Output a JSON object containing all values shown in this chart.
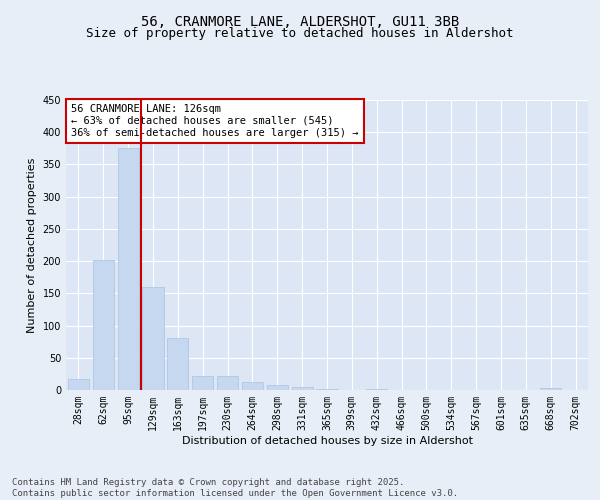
{
  "title": "56, CRANMORE LANE, ALDERSHOT, GU11 3BB",
  "subtitle": "Size of property relative to detached houses in Aldershot",
  "xlabel": "Distribution of detached houses by size in Aldershot",
  "ylabel": "Number of detached properties",
  "categories": [
    "28sqm",
    "62sqm",
    "95sqm",
    "129sqm",
    "163sqm",
    "197sqm",
    "230sqm",
    "264sqm",
    "298sqm",
    "331sqm",
    "365sqm",
    "399sqm",
    "432sqm",
    "466sqm",
    "500sqm",
    "534sqm",
    "567sqm",
    "601sqm",
    "635sqm",
    "668sqm",
    "702sqm"
  ],
  "values": [
    17,
    202,
    375,
    160,
    80,
    21,
    21,
    13,
    7,
    4,
    1,
    0,
    1,
    0,
    0,
    0,
    0,
    0,
    0,
    3,
    0
  ],
  "bar_color": "#c5d8f0",
  "bar_edge_color": "#aac4e0",
  "property_line_color": "#cc0000",
  "annotation_text": "56 CRANMORE LANE: 126sqm\n← 63% of detached houses are smaller (545)\n36% of semi-detached houses are larger (315) →",
  "annotation_box_color": "#ffffff",
  "annotation_box_edge_color": "#cc0000",
  "background_color": "#e8eef7",
  "plot_background_color": "#dce6f5",
  "grid_color": "#ffffff",
  "ylim": [
    0,
    450
  ],
  "yticks": [
    0,
    50,
    100,
    150,
    200,
    250,
    300,
    350,
    400,
    450
  ],
  "footer_text": "Contains HM Land Registry data © Crown copyright and database right 2025.\nContains public sector information licensed under the Open Government Licence v3.0.",
  "title_fontsize": 10,
  "subtitle_fontsize": 9,
  "xlabel_fontsize": 8,
  "ylabel_fontsize": 8,
  "tick_fontsize": 7,
  "annotation_fontsize": 7.5,
  "footer_fontsize": 6.5
}
